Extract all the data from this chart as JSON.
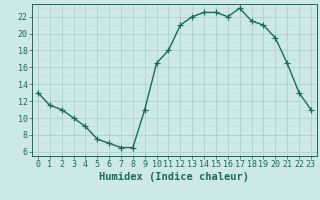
{
  "x": [
    0,
    1,
    2,
    3,
    4,
    5,
    6,
    7,
    8,
    9,
    10,
    11,
    12,
    13,
    14,
    15,
    16,
    17,
    18,
    19,
    20,
    21,
    22,
    23
  ],
  "y": [
    13,
    11.5,
    11,
    10,
    9,
    7.5,
    7,
    6.5,
    6.5,
    11,
    16.5,
    18,
    21,
    22,
    22.5,
    22.5,
    22,
    23,
    21.5,
    21,
    19.5,
    16.5,
    13,
    11
  ],
  "line_color": "#1a6b5a",
  "marker": "+",
  "marker_size": 4,
  "bg_color": "#cce8e8",
  "grid_color": "#aacccc",
  "xlabel": "Humidex (Indice chaleur)",
  "xlabel_fontsize": 7.5,
  "xlim": [
    -0.5,
    23.5
  ],
  "ylim": [
    5.5,
    23.5
  ],
  "yticks": [
    6,
    8,
    10,
    12,
    14,
    16,
    18,
    20,
    22
  ],
  "xticks": [
    0,
    1,
    2,
    3,
    4,
    5,
    6,
    7,
    8,
    9,
    10,
    11,
    12,
    13,
    14,
    15,
    16,
    17,
    18,
    19,
    20,
    21,
    22,
    23
  ],
  "tick_fontsize": 6,
  "line_width": 1.0
}
